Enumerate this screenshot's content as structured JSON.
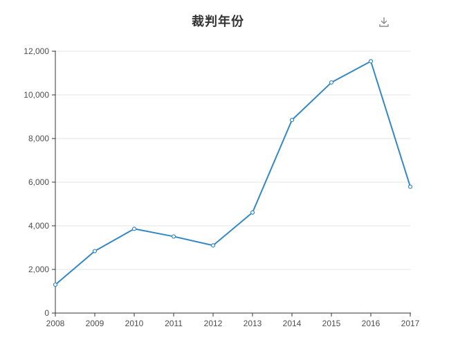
{
  "header": {
    "title": "裁判年份",
    "download_icon": "download-icon"
  },
  "chart_data": {
    "type": "line",
    "title": "裁判年份",
    "categories": [
      "2008",
      "2009",
      "2010",
      "2011",
      "2012",
      "2013",
      "2014",
      "2015",
      "2016",
      "2017"
    ],
    "series": [
      {
        "name": "裁判年份",
        "values": [
          1300,
          2840,
          3860,
          3510,
          3100,
          4610,
          8850,
          10570,
          11540,
          5790
        ]
      }
    ],
    "xlabel": "",
    "ylabel": "",
    "ylim": [
      0,
      12000
    ],
    "y_ticks": [
      0,
      2000,
      4000,
      6000,
      8000,
      10000,
      12000
    ],
    "y_tick_labels": [
      "0",
      "2,000",
      "4,000",
      "6,000",
      "8,000",
      "10,000",
      "12,000"
    ],
    "grid": true,
    "legend_position": "none",
    "line_color": "#3287c4",
    "marker": "open-circle",
    "gridline_color": "#e3e3e3",
    "axis_color": "#333333",
    "label_color": "#4d4d4d",
    "icon_color": "#8c8c8c"
  }
}
